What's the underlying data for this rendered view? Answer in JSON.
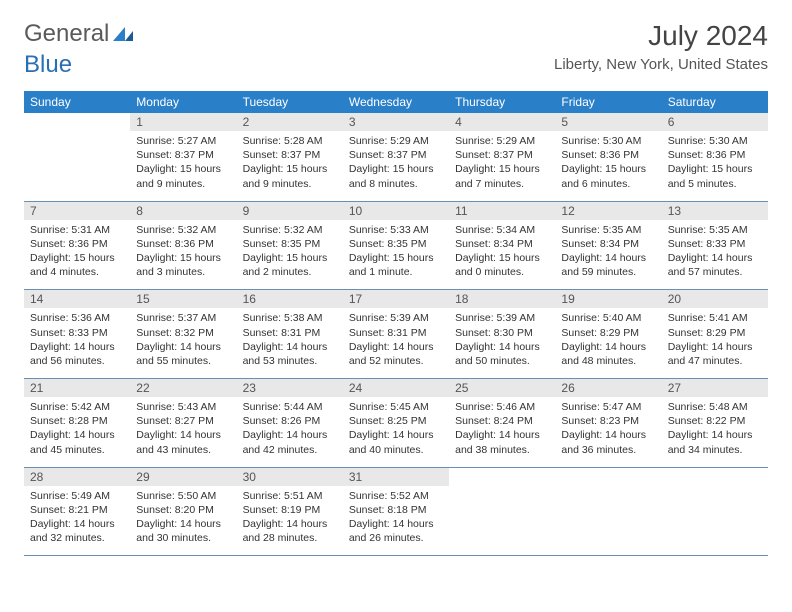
{
  "logo": {
    "text1": "General",
    "text2": "Blue"
  },
  "title": "July 2024",
  "location": "Liberty, New York, United States",
  "colors": {
    "header_bg": "#2a7fc9",
    "header_fg": "#ffffff",
    "daynum_bg": "#e8e8e8",
    "row_border": "#6a8fb5",
    "logo_gray": "#5a5a5a",
    "logo_blue": "#2a6fb5"
  },
  "weekdays": [
    "Sunday",
    "Monday",
    "Tuesday",
    "Wednesday",
    "Thursday",
    "Friday",
    "Saturday"
  ],
  "weeks": [
    [
      {
        "empty": true
      },
      {
        "day": "1",
        "sunrise": "Sunrise: 5:27 AM",
        "sunset": "Sunset: 8:37 PM",
        "daylight1": "Daylight: 15 hours",
        "daylight2": "and 9 minutes."
      },
      {
        "day": "2",
        "sunrise": "Sunrise: 5:28 AM",
        "sunset": "Sunset: 8:37 PM",
        "daylight1": "Daylight: 15 hours",
        "daylight2": "and 9 minutes."
      },
      {
        "day": "3",
        "sunrise": "Sunrise: 5:29 AM",
        "sunset": "Sunset: 8:37 PM",
        "daylight1": "Daylight: 15 hours",
        "daylight2": "and 8 minutes."
      },
      {
        "day": "4",
        "sunrise": "Sunrise: 5:29 AM",
        "sunset": "Sunset: 8:37 PM",
        "daylight1": "Daylight: 15 hours",
        "daylight2": "and 7 minutes."
      },
      {
        "day": "5",
        "sunrise": "Sunrise: 5:30 AM",
        "sunset": "Sunset: 8:36 PM",
        "daylight1": "Daylight: 15 hours",
        "daylight2": "and 6 minutes."
      },
      {
        "day": "6",
        "sunrise": "Sunrise: 5:30 AM",
        "sunset": "Sunset: 8:36 PM",
        "daylight1": "Daylight: 15 hours",
        "daylight2": "and 5 minutes."
      }
    ],
    [
      {
        "day": "7",
        "sunrise": "Sunrise: 5:31 AM",
        "sunset": "Sunset: 8:36 PM",
        "daylight1": "Daylight: 15 hours",
        "daylight2": "and 4 minutes."
      },
      {
        "day": "8",
        "sunrise": "Sunrise: 5:32 AM",
        "sunset": "Sunset: 8:36 PM",
        "daylight1": "Daylight: 15 hours",
        "daylight2": "and 3 minutes."
      },
      {
        "day": "9",
        "sunrise": "Sunrise: 5:32 AM",
        "sunset": "Sunset: 8:35 PM",
        "daylight1": "Daylight: 15 hours",
        "daylight2": "and 2 minutes."
      },
      {
        "day": "10",
        "sunrise": "Sunrise: 5:33 AM",
        "sunset": "Sunset: 8:35 PM",
        "daylight1": "Daylight: 15 hours",
        "daylight2": "and 1 minute."
      },
      {
        "day": "11",
        "sunrise": "Sunrise: 5:34 AM",
        "sunset": "Sunset: 8:34 PM",
        "daylight1": "Daylight: 15 hours",
        "daylight2": "and 0 minutes."
      },
      {
        "day": "12",
        "sunrise": "Sunrise: 5:35 AM",
        "sunset": "Sunset: 8:34 PM",
        "daylight1": "Daylight: 14 hours",
        "daylight2": "and 59 minutes."
      },
      {
        "day": "13",
        "sunrise": "Sunrise: 5:35 AM",
        "sunset": "Sunset: 8:33 PM",
        "daylight1": "Daylight: 14 hours",
        "daylight2": "and 57 minutes."
      }
    ],
    [
      {
        "day": "14",
        "sunrise": "Sunrise: 5:36 AM",
        "sunset": "Sunset: 8:33 PM",
        "daylight1": "Daylight: 14 hours",
        "daylight2": "and 56 minutes."
      },
      {
        "day": "15",
        "sunrise": "Sunrise: 5:37 AM",
        "sunset": "Sunset: 8:32 PM",
        "daylight1": "Daylight: 14 hours",
        "daylight2": "and 55 minutes."
      },
      {
        "day": "16",
        "sunrise": "Sunrise: 5:38 AM",
        "sunset": "Sunset: 8:31 PM",
        "daylight1": "Daylight: 14 hours",
        "daylight2": "and 53 minutes."
      },
      {
        "day": "17",
        "sunrise": "Sunrise: 5:39 AM",
        "sunset": "Sunset: 8:31 PM",
        "daylight1": "Daylight: 14 hours",
        "daylight2": "and 52 minutes."
      },
      {
        "day": "18",
        "sunrise": "Sunrise: 5:39 AM",
        "sunset": "Sunset: 8:30 PM",
        "daylight1": "Daylight: 14 hours",
        "daylight2": "and 50 minutes."
      },
      {
        "day": "19",
        "sunrise": "Sunrise: 5:40 AM",
        "sunset": "Sunset: 8:29 PM",
        "daylight1": "Daylight: 14 hours",
        "daylight2": "and 48 minutes."
      },
      {
        "day": "20",
        "sunrise": "Sunrise: 5:41 AM",
        "sunset": "Sunset: 8:29 PM",
        "daylight1": "Daylight: 14 hours",
        "daylight2": "and 47 minutes."
      }
    ],
    [
      {
        "day": "21",
        "sunrise": "Sunrise: 5:42 AM",
        "sunset": "Sunset: 8:28 PM",
        "daylight1": "Daylight: 14 hours",
        "daylight2": "and 45 minutes."
      },
      {
        "day": "22",
        "sunrise": "Sunrise: 5:43 AM",
        "sunset": "Sunset: 8:27 PM",
        "daylight1": "Daylight: 14 hours",
        "daylight2": "and 43 minutes."
      },
      {
        "day": "23",
        "sunrise": "Sunrise: 5:44 AM",
        "sunset": "Sunset: 8:26 PM",
        "daylight1": "Daylight: 14 hours",
        "daylight2": "and 42 minutes."
      },
      {
        "day": "24",
        "sunrise": "Sunrise: 5:45 AM",
        "sunset": "Sunset: 8:25 PM",
        "daylight1": "Daylight: 14 hours",
        "daylight2": "and 40 minutes."
      },
      {
        "day": "25",
        "sunrise": "Sunrise: 5:46 AM",
        "sunset": "Sunset: 8:24 PM",
        "daylight1": "Daylight: 14 hours",
        "daylight2": "and 38 minutes."
      },
      {
        "day": "26",
        "sunrise": "Sunrise: 5:47 AM",
        "sunset": "Sunset: 8:23 PM",
        "daylight1": "Daylight: 14 hours",
        "daylight2": "and 36 minutes."
      },
      {
        "day": "27",
        "sunrise": "Sunrise: 5:48 AM",
        "sunset": "Sunset: 8:22 PM",
        "daylight1": "Daylight: 14 hours",
        "daylight2": "and 34 minutes."
      }
    ],
    [
      {
        "day": "28",
        "sunrise": "Sunrise: 5:49 AM",
        "sunset": "Sunset: 8:21 PM",
        "daylight1": "Daylight: 14 hours",
        "daylight2": "and 32 minutes."
      },
      {
        "day": "29",
        "sunrise": "Sunrise: 5:50 AM",
        "sunset": "Sunset: 8:20 PM",
        "daylight1": "Daylight: 14 hours",
        "daylight2": "and 30 minutes."
      },
      {
        "day": "30",
        "sunrise": "Sunrise: 5:51 AM",
        "sunset": "Sunset: 8:19 PM",
        "daylight1": "Daylight: 14 hours",
        "daylight2": "and 28 minutes."
      },
      {
        "day": "31",
        "sunrise": "Sunrise: 5:52 AM",
        "sunset": "Sunset: 8:18 PM",
        "daylight1": "Daylight: 14 hours",
        "daylight2": "and 26 minutes."
      },
      {
        "empty": true
      },
      {
        "empty": true
      },
      {
        "empty": true
      }
    ]
  ]
}
